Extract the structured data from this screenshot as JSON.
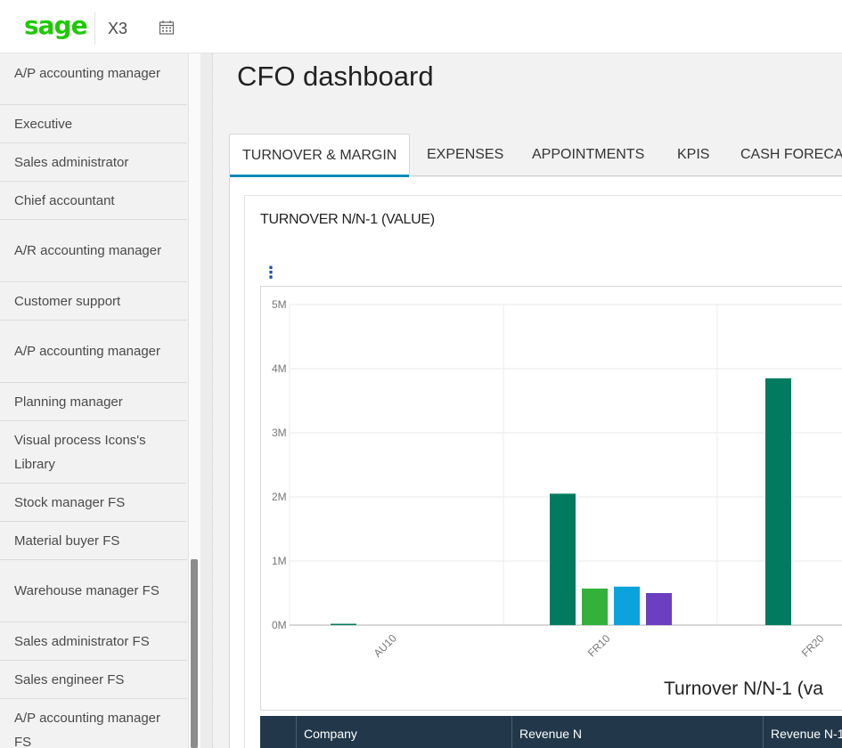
{
  "topbar": {
    "brand": "sage",
    "product": "X3"
  },
  "sidebar": {
    "items": [
      {
        "label": "A/P accounting manager",
        "lines": 2
      },
      {
        "label": "Executive",
        "lines": 1
      },
      {
        "label": "Sales administrator",
        "lines": 1
      },
      {
        "label": "Chief accountant",
        "lines": 1
      },
      {
        "label": "A/R accounting manager",
        "lines": 2
      },
      {
        "label": "Customer support",
        "lines": 1
      },
      {
        "label": "A/P accounting manager",
        "lines": 2
      },
      {
        "label": "Planning manager",
        "lines": 1
      },
      {
        "label": "Visual process Icons's Library",
        "lines": 2
      },
      {
        "label": "Stock manager FS",
        "lines": 1
      },
      {
        "label": "Material buyer FS",
        "lines": 1
      },
      {
        "label": "Warehouse manager FS",
        "lines": 2
      },
      {
        "label": "Sales administrator FS",
        "lines": 1
      },
      {
        "label": "Sales engineer FS",
        "lines": 1
      },
      {
        "label": "A/P accounting manager FS",
        "lines": 2
      }
    ]
  },
  "main": {
    "title": "CFO dashboard",
    "tabs": [
      {
        "label": "TURNOVER & MARGIN",
        "active": true
      },
      {
        "label": "EXPENSES",
        "active": false
      },
      {
        "label": "APPOINTMENTS",
        "active": false
      },
      {
        "label": "KPIS",
        "active": false
      },
      {
        "label": "CASH FORECA",
        "active": false
      }
    ]
  },
  "chart_data": {
    "type": "bar",
    "title": "TURNOVER N/N-1 (VALUE)",
    "caption": "Turnover N/N-1 (va",
    "categories": [
      "AU10",
      "FR10",
      "FR20"
    ],
    "y_ticks": [
      "0M",
      "1M",
      "2M",
      "3M",
      "4M",
      "5M"
    ],
    "ylim": [
      0,
      5000000
    ],
    "grid": true,
    "series": [
      {
        "values": [
          0,
          2050000,
          3850000
        ],
        "color": "#007b5f"
      },
      {
        "values": [
          null,
          570000,
          null
        ],
        "color": "#33b13a"
      },
      {
        "values": [
          null,
          600000,
          null
        ],
        "color": "#0aa3dc"
      },
      {
        "values": [
          null,
          500000,
          null
        ],
        "color": "#6b3fc0"
      }
    ]
  },
  "table": {
    "columns": [
      "",
      "Company",
      "Revenue N",
      "Revenue N-1"
    ]
  },
  "colors": {
    "brand": "#1fc900",
    "tab_underline": "#008bb8",
    "table_header": "#22384a"
  }
}
